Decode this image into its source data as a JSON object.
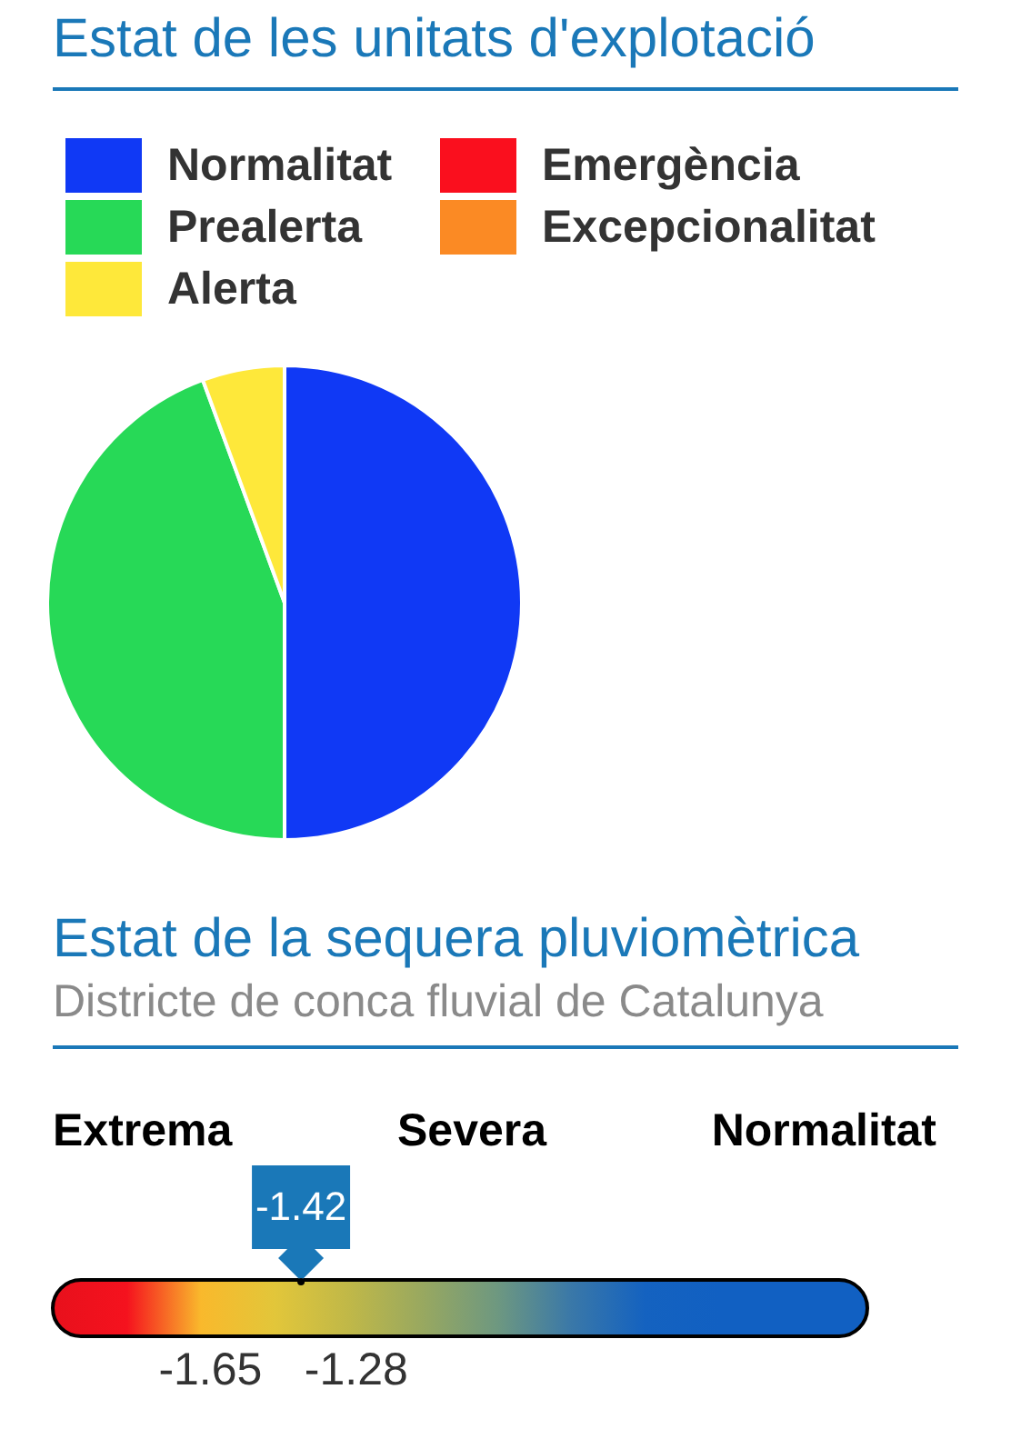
{
  "chart_data": [
    {
      "type": "pie",
      "title": "Estat de les unitats d'explotació",
      "categories": [
        "Normalitat",
        "Prealerta",
        "Alerta",
        "Emergència",
        "Excepcionalitat"
      ],
      "values": [
        50,
        44.4,
        5.6,
        0,
        0
      ],
      "colors": [
        "#1039f5",
        "#27d957",
        "#fee83a",
        "#fa0f1e",
        "#fb8a24"
      ],
      "legend": "top right"
    },
    {
      "type": "other",
      "title": "Estat de la sequera pluviomètrica",
      "subtitle": "Districte de conca fluvial de Catalunya",
      "annotations": [
        "Extrema",
        "Severa",
        "Normalitat",
        "-1.65",
        "-1.28"
      ],
      "values": [
        -1.42
      ],
      "color": "#1a78b8",
      "data_labels": true
    }
  ]
}
